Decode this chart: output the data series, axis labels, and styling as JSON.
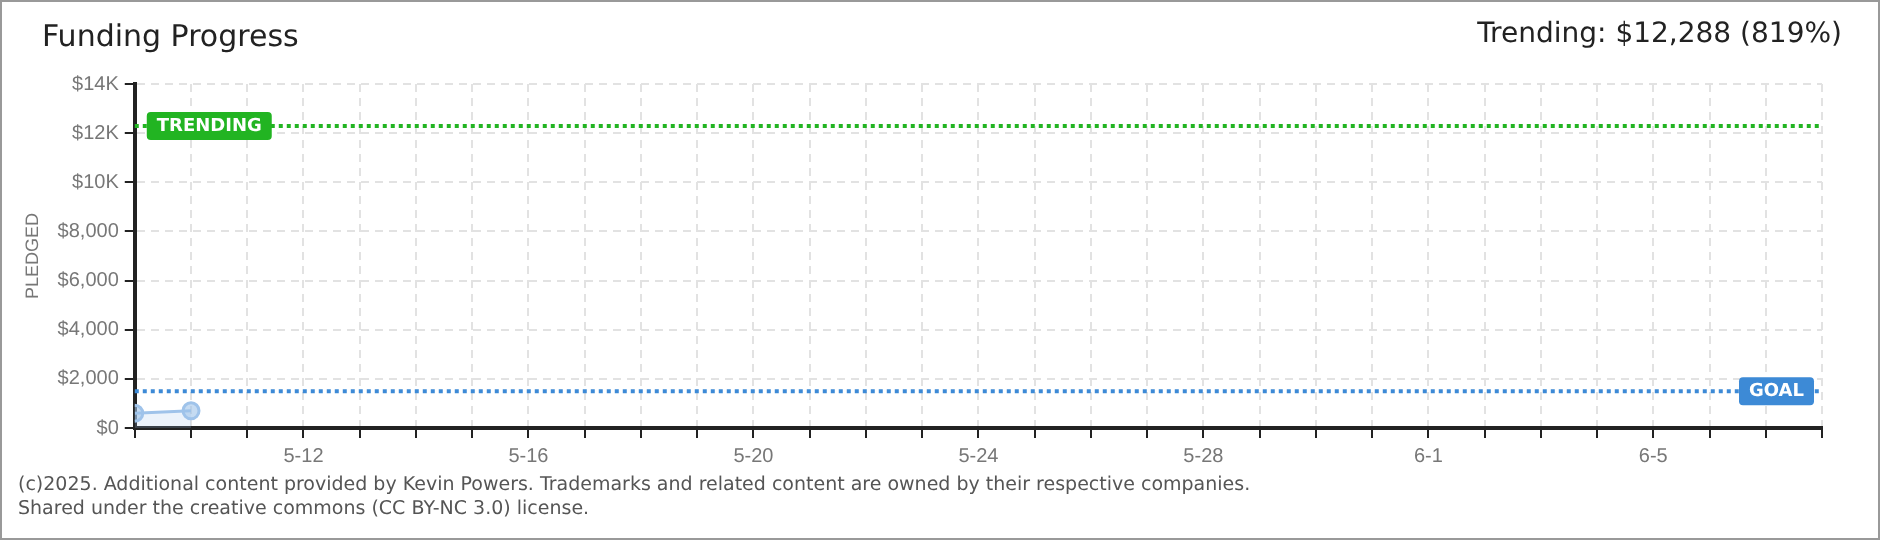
{
  "chart_data": {
    "type": "area",
    "title": "Funding Progress",
    "ylabel": "PLEDGED",
    "annotations": [
      "Trending: $12,288 (819%)",
      "(c)2025. Additional content provided by Kevin Powers. Trademarks and related content are owned by their respective companies.",
      "Shared under the creative commons (CC BY-NC 3.0) license."
    ],
    "x": [
      "--05-09",
      "--05-10"
    ],
    "series": [
      {
        "color": "#9fc3ea",
        "values": [
          600,
          700
        ]
      }
    ],
    "xlim": [
      "--05-09",
      "--06-08"
    ],
    "xticks": [
      {
        "value": "--05-09",
        "label": null
      },
      {
        "value": "--05-10",
        "label": null
      },
      {
        "value": "--05-11",
        "label": null
      },
      {
        "value": "--05-12",
        "label": "5-12"
      },
      {
        "value": "--05-13",
        "label": null
      },
      {
        "value": "--05-14",
        "label": null
      },
      {
        "value": "--05-15",
        "label": null
      },
      {
        "value": "--05-16",
        "label": "5-16"
      },
      {
        "value": "--05-17",
        "label": null
      },
      {
        "value": "--05-18",
        "label": null
      },
      {
        "value": "--05-19",
        "label": null
      },
      {
        "value": "--05-20",
        "label": "5-20"
      },
      {
        "value": "--05-21",
        "label": null
      },
      {
        "value": "--05-22",
        "label": null
      },
      {
        "value": "--05-23",
        "label": null
      },
      {
        "value": "--05-24",
        "label": "5-24"
      },
      {
        "value": "--05-25",
        "label": null
      },
      {
        "value": "--05-26",
        "label": null
      },
      {
        "value": "--05-27",
        "label": null
      },
      {
        "value": "--05-28",
        "label": "5-28"
      },
      {
        "value": "--05-29",
        "label": null
      },
      {
        "value": "--05-30",
        "label": null
      },
      {
        "value": "--05-31",
        "label": null
      },
      {
        "value": "--06-01",
        "label": "6-1"
      },
      {
        "value": "--06-02",
        "label": null
      },
      {
        "value": "--06-03",
        "label": null
      },
      {
        "value": "--06-04",
        "label": null
      },
      {
        "value": "--06-05",
        "label": "6-5"
      },
      {
        "value": "--06-06",
        "label": null
      },
      {
        "value": "--06-07",
        "label": null
      },
      {
        "value": "--06-08",
        "label": null
      }
    ],
    "ylim": [
      0,
      14000
    ],
    "yticks": [
      {
        "value": 0,
        "label": "$0"
      },
      {
        "value": 2000,
        "label": "$2,000"
      },
      {
        "value": 4000,
        "label": "$4,000"
      },
      {
        "value": 6000,
        "label": "$6,000"
      },
      {
        "value": 8000,
        "label": "$8,000"
      },
      {
        "value": 10000,
        "label": "$10K"
      },
      {
        "value": 12000,
        "label": "$12K"
      },
      {
        "value": 14000,
        "label": "$14K"
      }
    ],
    "ref_lines": [
      {
        "axis": "y",
        "value": 12288,
        "label": "TRENDING",
        "color": "#22b422",
        "line_style": "dotted"
      },
      {
        "axis": "y",
        "value": 1500,
        "label": "GOAL",
        "color": "#3d8ad6",
        "line_style": "dotted"
      }
    ],
    "grid": true,
    "legend": false,
    "marker": "circle",
    "line_style": "solid"
  }
}
